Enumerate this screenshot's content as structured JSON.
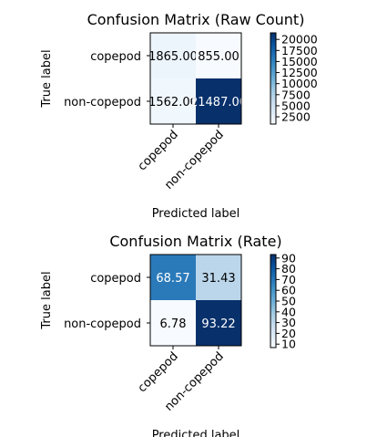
{
  "chart_data": [
    {
      "type": "heatmap",
      "title": "Confusion Matrix (Raw Count)",
      "xlabel": "Predicted label",
      "ylabel": "True label",
      "x_categories": [
        "copepod",
        "non-copepod"
      ],
      "y_categories": [
        "copepod",
        "non-copepod"
      ],
      "values": [
        [
          1865.0,
          855.0
        ],
        [
          1562.0,
          21487.0
        ]
      ],
      "value_labels": [
        [
          "1865.00",
          "855.00"
        ],
        [
          "1562.00",
          "21487.00"
        ]
      ],
      "colormap": "Blues",
      "colorbar": {
        "vmin": 855.0,
        "vmax": 21487.0,
        "ticks": [
          2500,
          5000,
          7500,
          10000,
          12500,
          15000,
          17500,
          20000
        ],
        "tick_labels": [
          "2500",
          "5000",
          "7500",
          "10000",
          "12500",
          "15000",
          "17500",
          "20000"
        ]
      }
    },
    {
      "type": "heatmap",
      "title": "Confusion Matrix (Rate)",
      "xlabel": "Predicted label",
      "ylabel": "True label",
      "x_categories": [
        "copepod",
        "non-copepod"
      ],
      "y_categories": [
        "copepod",
        "non-copepod"
      ],
      "values": [
        [
          68.57,
          31.43
        ],
        [
          6.78,
          93.22
        ]
      ],
      "value_labels": [
        [
          "68.57",
          "31.43"
        ],
        [
          "6.78",
          "93.22"
        ]
      ],
      "colormap": "Blues",
      "colorbar": {
        "vmin": 6.78,
        "vmax": 93.22,
        "ticks": [
          10,
          20,
          30,
          40,
          50,
          60,
          70,
          80,
          90
        ],
        "tick_labels": [
          "10",
          "20",
          "30",
          "40",
          "50",
          "60",
          "70",
          "80",
          "90"
        ]
      }
    }
  ]
}
